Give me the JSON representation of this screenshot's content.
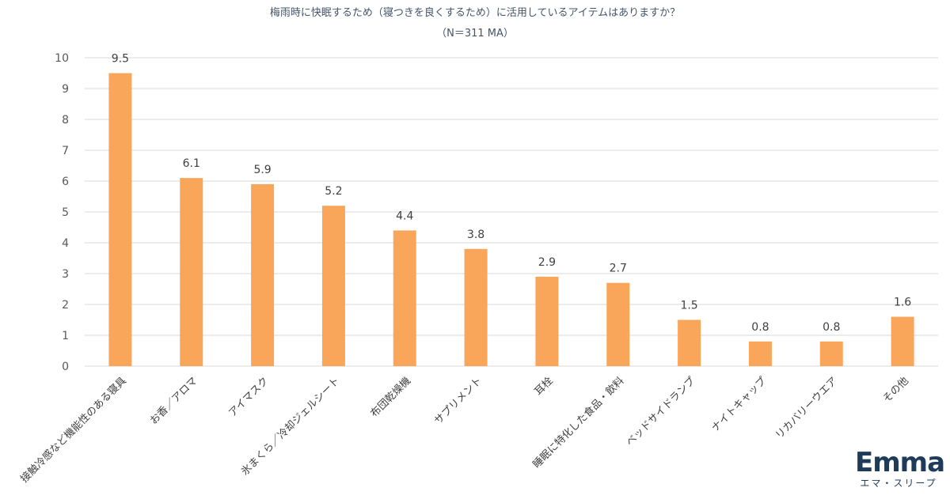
{
  "chart_data": {
    "type": "bar",
    "title": "梅雨時に快眠するため（寝つきを良くするため）に活用しているアイテムはありますか？",
    "subtitle": "（N＝311 MA）",
    "categories": [
      "接触冷感など機能性のある寝具",
      "お香／アロマ",
      "アイマスク",
      "氷まくら／冷却ジェルシート",
      "布団乾燥機",
      "サプリメント",
      "耳栓",
      "睡眠に特化した食品・飲料",
      "ベッドサイドランプ",
      "ナイトキャップ",
      "リカバリーウエア",
      "その他"
    ],
    "values": [
      9.5,
      6.1,
      5.9,
      5.2,
      4.4,
      3.8,
      2.9,
      2.7,
      1.5,
      0.8,
      0.8,
      1.6
    ],
    "data_labels": [
      "9.5",
      "6.1",
      "5.9",
      "5.2",
      "4.4",
      "3.8",
      "2.9",
      "2.7",
      "1.5",
      "0.8",
      "0.8",
      "1.6"
    ],
    "y_ticks": [
      "0",
      "1",
      "2",
      "3",
      "4",
      "5",
      "6",
      "7",
      "8",
      "9",
      "10"
    ],
    "ylim": [
      0,
      10
    ],
    "grid": true,
    "bar_color": "#F9A55A"
  },
  "logo": {
    "name": "Emma",
    "subtitle": "エマ・スリープ"
  }
}
